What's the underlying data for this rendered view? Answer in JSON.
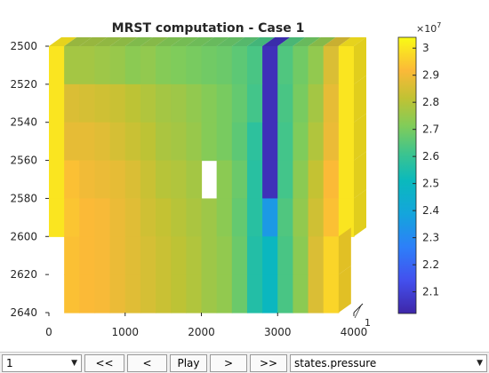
{
  "chart_data": {
    "type": "heatmap",
    "title": "MRST computation - Case 1",
    "x_ticks": [
      "0",
      "1000",
      "2000",
      "3000",
      "4000"
    ],
    "y_ticks": [
      "2500",
      "2520",
      "2540",
      "2560",
      "2580",
      "2600",
      "2620",
      "2640"
    ],
    "z_tick": "1",
    "xlim": [
      0,
      4000
    ],
    "ylim": [
      2500,
      2640
    ],
    "colorbar": {
      "exponent_base": "×10",
      "exponent_power": "7",
      "ticks": [
        "2.1",
        "2.2",
        "2.3",
        "2.4",
        "2.5",
        "2.6",
        "2.7",
        "2.8",
        "2.9",
        "3"
      ],
      "tick_values": [
        2.1,
        2.2,
        2.3,
        2.4,
        2.5,
        2.6,
        2.7,
        2.8,
        2.9,
        3.0
      ],
      "min": 2.02,
      "max": 3.04,
      "colormap": "parula"
    },
    "grid": false,
    "x_edges": [
      200,
      400,
      600,
      800,
      1000,
      1200,
      1400,
      1600,
      1800,
      2000,
      2200,
      2400,
      2600,
      2800,
      3000,
      3200,
      3400,
      3600,
      3800
    ],
    "layers": [
      {
        "y_top": 2500,
        "y_bottom": 2520,
        "x_start": 0,
        "values": [
          3.0,
          2.77,
          2.77,
          2.76,
          2.75,
          2.73,
          2.74,
          2.72,
          2.71,
          2.7,
          2.69,
          2.68,
          2.66,
          2.63,
          2.05,
          2.64,
          2.69,
          2.74,
          2.86,
          3.0
        ]
      },
      {
        "y_top": 2520,
        "y_bottom": 2540,
        "x_start": 0,
        "values": [
          3.0,
          2.86,
          2.85,
          2.84,
          2.83,
          2.81,
          2.79,
          2.77,
          2.76,
          2.74,
          2.72,
          2.7,
          2.67,
          2.62,
          2.05,
          2.63,
          2.7,
          2.77,
          2.88,
          3.0
        ]
      },
      {
        "y_top": 2540,
        "y_bottom": 2560,
        "x_start": 0,
        "values": [
          3.0,
          2.88,
          2.88,
          2.87,
          2.85,
          2.83,
          2.81,
          2.78,
          2.77,
          2.75,
          2.72,
          2.7,
          2.66,
          2.58,
          2.05,
          2.62,
          2.71,
          2.79,
          2.89,
          3.0
        ]
      },
      {
        "y_top": 2560,
        "y_bottom": 2580,
        "x_start": 0,
        "values": [
          3.0,
          2.93,
          2.9,
          2.89,
          2.88,
          2.86,
          2.83,
          2.8,
          2.79,
          2.77,
          null,
          2.73,
          2.68,
          2.57,
          2.05,
          2.62,
          2.73,
          2.82,
          2.92,
          3.0
        ]
      },
      {
        "y_top": 2580,
        "y_bottom": 2600,
        "x_start": 0,
        "values": [
          3.0,
          2.94,
          2.92,
          2.91,
          2.89,
          2.87,
          2.84,
          2.82,
          2.8,
          2.78,
          2.76,
          2.73,
          2.67,
          2.57,
          2.35,
          2.64,
          2.74,
          2.84,
          2.93,
          3.0
        ]
      },
      {
        "y_top": 2600,
        "y_bottom": 2620,
        "x_start": 200,
        "values": [
          2.93,
          2.92,
          2.91,
          2.89,
          2.87,
          2.85,
          2.83,
          2.81,
          2.79,
          2.76,
          2.74,
          2.68,
          2.56,
          2.5,
          2.63,
          2.73,
          2.86,
          2.97
        ]
      },
      {
        "y_top": 2620,
        "y_bottom": 2640,
        "x_start": 200,
        "values": [
          2.93,
          2.92,
          2.91,
          2.89,
          2.87,
          2.85,
          2.83,
          2.81,
          2.79,
          2.76,
          2.74,
          2.68,
          2.56,
          2.5,
          2.63,
          2.73,
          2.86,
          2.97
        ]
      }
    ]
  },
  "controls": {
    "step_value": "1",
    "rewind_label": "<<",
    "back_label": "<",
    "play_label": "Play",
    "forward_label": ">",
    "fast_forward_label": ">>",
    "field_value": "states.pressure",
    "chevron_icon": "chevron-down-icon"
  }
}
